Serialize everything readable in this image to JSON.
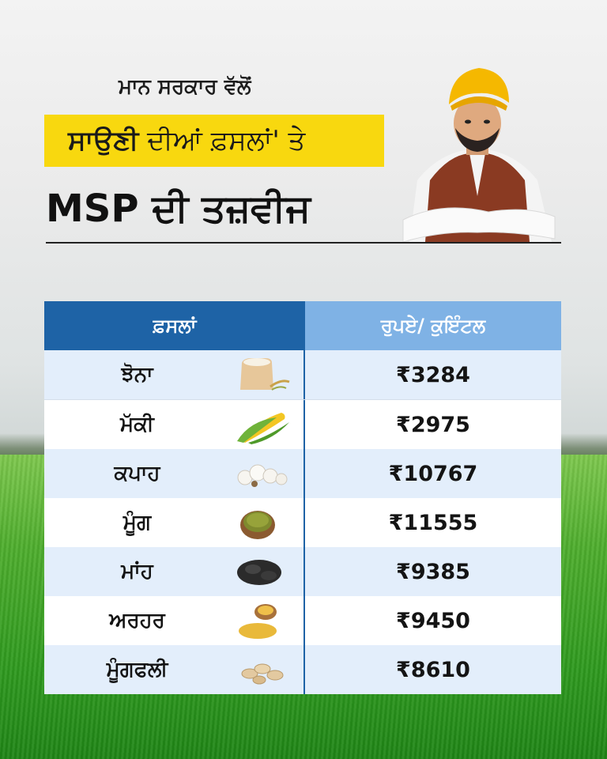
{
  "header": {
    "subtitle": "ਮਾਨ ਸਰਕਾਰ ਵੱਲੋਂ",
    "highlight_bold": "ਸਾਉਣੀ",
    "highlight_rest": " ਦੀਆਂ ਫ਼ਸਲਾਂ' ਤੇ",
    "title": "MSP ਦੀ ਤਜ਼ਵੀਜ"
  },
  "table": {
    "col_crop": "ਫ਼ਸਲਾਂ",
    "col_price": "ਰੁਪਏ/ ਕੁਇੰਟਲ",
    "rows": [
      {
        "crop": "ਝੋਨਾ",
        "price": "₹3284",
        "icon": "rice-sack-icon"
      },
      {
        "crop": "ਮੱਕੀ",
        "price": "₹2975",
        "icon": "corn-icon"
      },
      {
        "crop": "ਕਪਾਹ",
        "price": "₹10767",
        "icon": "cotton-icon"
      },
      {
        "crop": "ਮੂੰਗ",
        "price": "₹11555",
        "icon": "moong-bowl-icon"
      },
      {
        "crop": "ਮਾਂਹ",
        "price": "₹9385",
        "icon": "black-gram-icon"
      },
      {
        "crop": "ਅਰਹਰ",
        "price": "₹9450",
        "icon": "arhar-dal-icon"
      },
      {
        "crop": "ਮੂੰਗਫਲੀ",
        "price": "₹8610",
        "icon": "peanut-icon"
      }
    ]
  },
  "colors": {
    "highlight": "#f8d80f",
    "header_dark_blue": "#1e63a6",
    "header_light_blue": "#7fb2e5",
    "alt_row": "#e3eefb"
  }
}
